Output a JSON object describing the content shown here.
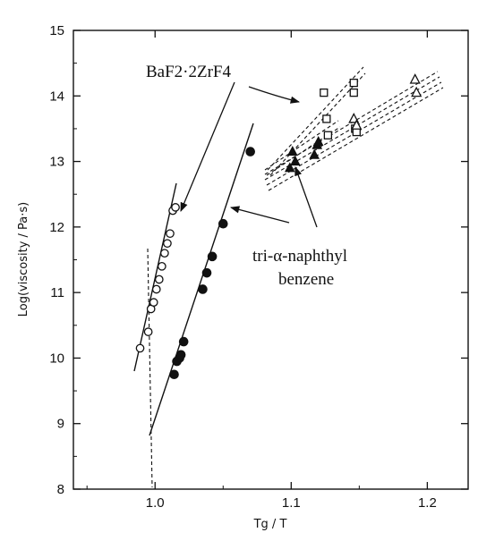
{
  "chart_data": {
    "type": "scatter",
    "xlabel": "Tg / T",
    "ylabel": "Log(viscosity / Pa·s)",
    "xlim": [
      0.94,
      1.23
    ],
    "ylim": [
      8,
      15
    ],
    "xticks": [
      1.0,
      1.1,
      1.2
    ],
    "yticks": [
      8,
      9,
      10,
      11,
      12,
      13,
      14,
      15
    ],
    "xtick_labels": [
      "1.0",
      "1.1",
      "1.2"
    ],
    "ytick_labels": [
      "8",
      "9",
      "10",
      "11",
      "12",
      "13",
      "14",
      "15"
    ],
    "series": [
      {
        "marker": "open-circle",
        "x": [
          0.989,
          0.995,
          0.997,
          0.999,
          1.001,
          1.003,
          1.005,
          1.007,
          1.009,
          1.011,
          1.013,
          1.015
        ],
        "y": [
          10.15,
          10.4,
          10.75,
          10.85,
          11.05,
          11.2,
          11.4,
          11.6,
          11.75,
          11.9,
          12.25,
          12.3
        ]
      },
      {
        "marker": "filled-circle",
        "x": [
          1.014,
          1.016,
          1.018,
          1.019,
          1.021,
          1.035,
          1.038,
          1.042,
          1.05,
          1.07
        ],
        "y": [
          9.75,
          9.95,
          10.0,
          10.05,
          10.25,
          11.05,
          11.3,
          11.55,
          12.05,
          13.15
        ]
      },
      {
        "marker": "open-square",
        "x": [
          1.124,
          1.126,
          1.127,
          1.146,
          1.146,
          1.147,
          1.148
        ],
        "y": [
          14.05,
          13.65,
          13.4,
          14.2,
          14.05,
          13.5,
          13.45
        ]
      },
      {
        "marker": "filled-triangle",
        "x": [
          1.099,
          1.101,
          1.103,
          1.117,
          1.119,
          1.12
        ],
        "y": [
          12.9,
          13.15,
          13.0,
          13.1,
          13.25,
          13.3
        ]
      },
      {
        "marker": "open-triangle",
        "x": [
          1.146,
          1.148,
          1.191,
          1.192
        ],
        "y": [
          13.65,
          13.55,
          14.25,
          14.05
        ]
      }
    ],
    "annotations": [
      {
        "id": "baf",
        "text": "BaF2·2ZrF4"
      },
      {
        "id": "tri1",
        "text": "tri-α-naphthyl"
      },
      {
        "id": "tri2",
        "text": "benzene"
      }
    ]
  }
}
